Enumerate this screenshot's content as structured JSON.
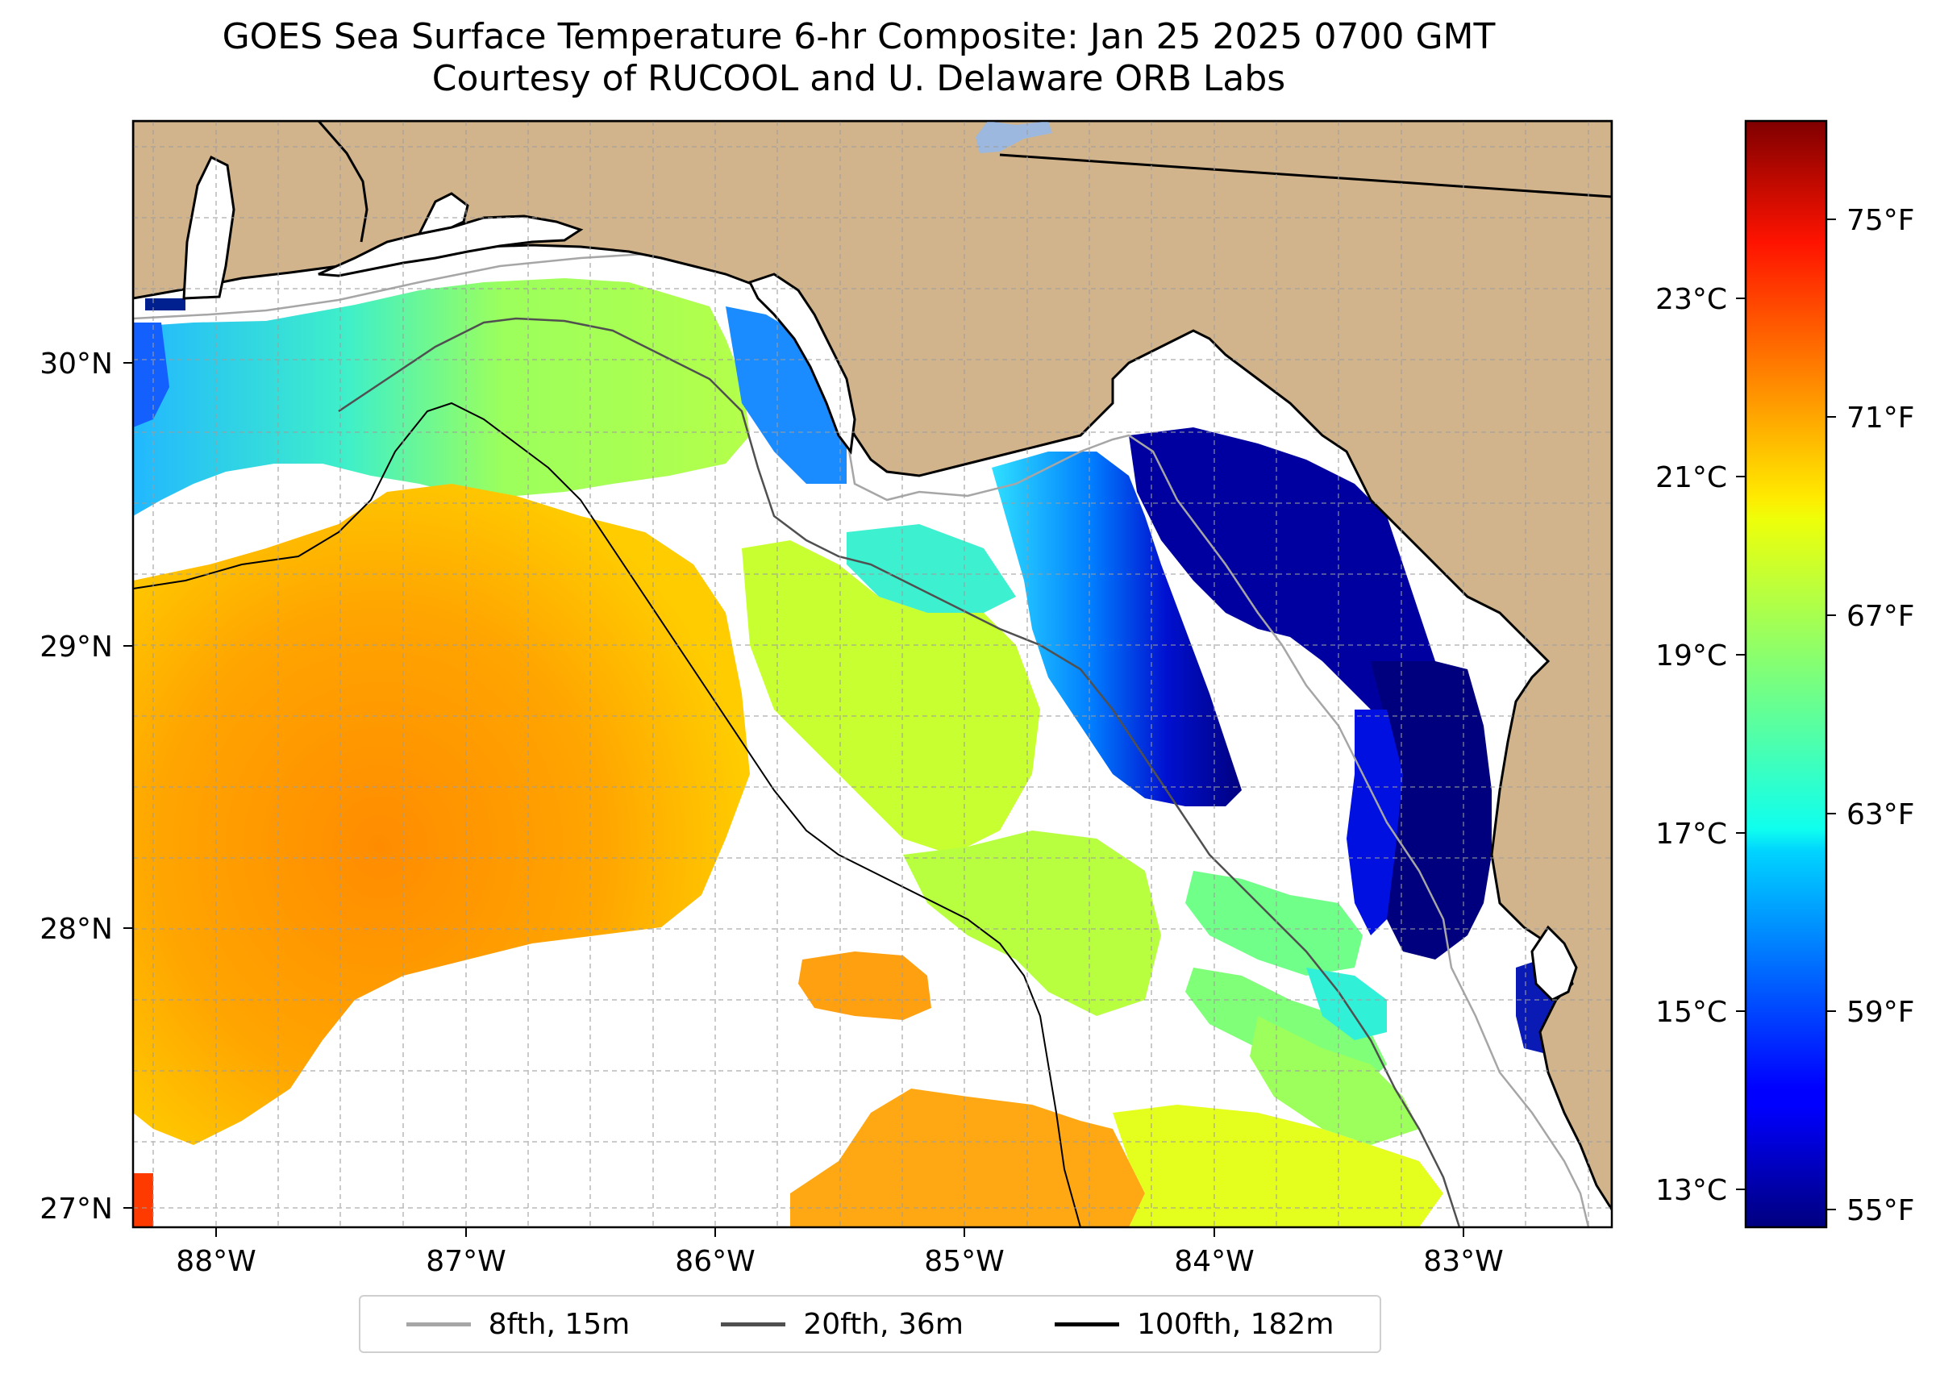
{
  "title": {
    "line1": "GOES Sea Surface Temperature 6-hr Composite: Jan 25 2025 0700 GMT",
    "line2": "Courtesy of RUCOOL and U. Delaware ORB Labs"
  },
  "map": {
    "lon_ticks": [
      "88°W",
      "87°W",
      "86°W",
      "85°W",
      "84°W",
      "83°W"
    ],
    "lat_ticks": [
      "30°N",
      "29°N",
      "28°N",
      "27°N"
    ],
    "colors": {
      "land": "#d2b48c",
      "water_no_data": "#ffffff",
      "lake": "#9cb8de",
      "coastline": "#000000",
      "grid": "#b0b0b0"
    }
  },
  "colorbar": {
    "celsius_ticks": [
      "23°C",
      "21°C",
      "19°C",
      "17°C",
      "15°C",
      "13°C"
    ],
    "fahrenheit_ticks": [
      "75°F",
      "71°F",
      "67°F",
      "63°F",
      "59°F",
      "55°F"
    ],
    "colormap": "jet"
  },
  "legend": {
    "items": [
      {
        "label": "8fth, 15m",
        "color": "#a6a6a6"
      },
      {
        "label": "20fth, 36m",
        "color": "#505050"
      },
      {
        "label": "100fth, 182m",
        "color": "#000000"
      }
    ]
  }
}
